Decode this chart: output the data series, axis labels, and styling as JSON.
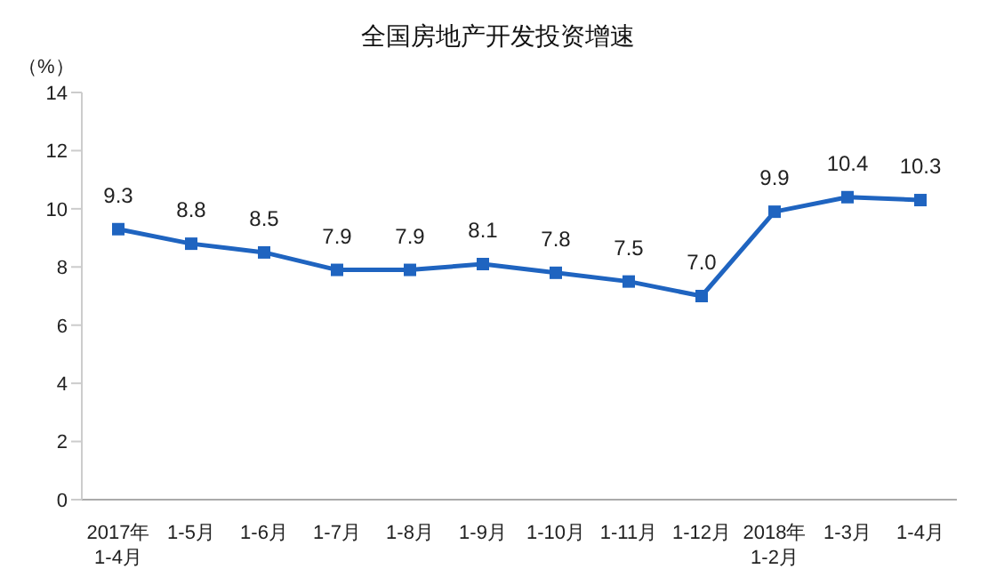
{
  "chart_data": {
    "type": "line",
    "title": "全国房地产开发投资增速",
    "ylabel": "（%）",
    "categories": [
      "2017年\n1-4月",
      "1-5月",
      "1-6月",
      "1-7月",
      "1-8月",
      "1-9月",
      "1-10月",
      "1-11月",
      "1-12月",
      "2018年\n1-2月",
      "1-3月",
      "1-4月"
    ],
    "series": [
      {
        "color": "#1f64c0",
        "values": [
          9.3,
          8.8,
          8.5,
          7.9,
          7.9,
          8.1,
          7.8,
          7.5,
          7.0,
          9.9,
          10.4,
          10.3
        ],
        "value_labels": [
          "9.3",
          "8.8",
          "8.5",
          "7.9",
          "7.9",
          "8.1",
          "7.8",
          "7.5",
          "7.0",
          "9.9",
          "10.4",
          "10.3"
        ]
      }
    ],
    "ylim": [
      0,
      14
    ],
    "yticks": [
      0,
      2,
      4,
      6,
      8,
      10,
      12,
      14
    ],
    "marker": "square",
    "line_style": "solid"
  }
}
